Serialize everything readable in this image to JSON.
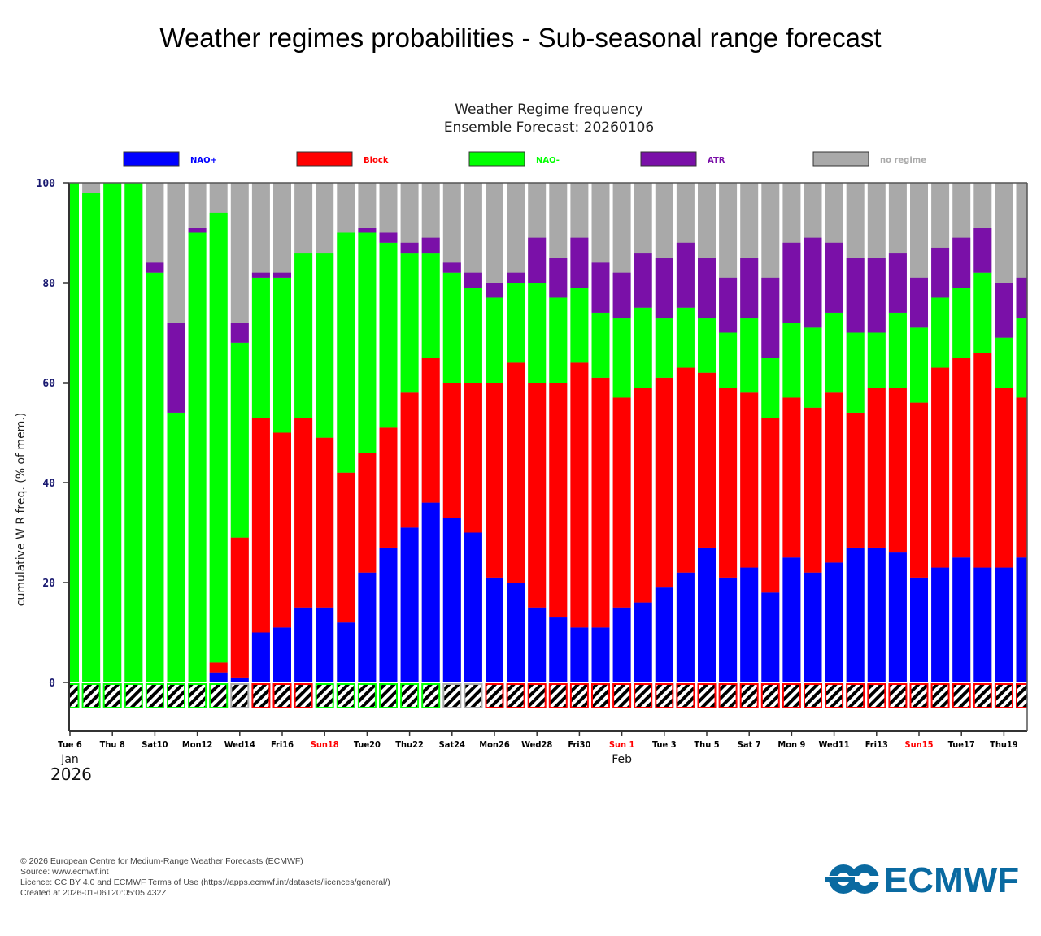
{
  "page": {
    "title": "Weather regimes probabilities - Sub-seasonal range forecast",
    "footer": [
      "© 2026 European Centre for Medium-Range Weather Forecasts (ECMWF)",
      "Source: www.ecmwf.int",
      "Licence: CC BY 4.0 and ECMWF Terms of Use (https://apps.ecmwf.int/datasets/licences/general/)",
      "Created at 2026-01-06T20:05:05.432Z"
    ],
    "logo_text": "ECMWF",
    "logo_color": "#0a6aa1"
  },
  "chart_data": {
    "type": "bar",
    "stacked": true,
    "title": "Weather Regime frequency",
    "subtitle": "Ensemble Forecast: 20260106",
    "xlabel": "",
    "ylabel": "cumulative W R freq. (% of mem.)",
    "ylim": [
      0,
      100
    ],
    "yticks": [
      0,
      20,
      40,
      60,
      80,
      100
    ],
    "legend_position": "top",
    "legend": [
      {
        "name": "NAO+",
        "color": "#0000ff"
      },
      {
        "name": "Block",
        "color": "#ff0000"
      },
      {
        "name": "NAO-",
        "color": "#00ff00"
      },
      {
        "name": "ATR",
        "color": "#7a10a8"
      },
      {
        "name": "no regime",
        "color": "#a9a9a9"
      }
    ],
    "categories": [
      "Jan 6",
      "Jan 7",
      "Jan 8",
      "Jan 9",
      "Jan 10",
      "Jan 11",
      "Jan 12",
      "Jan 13",
      "Jan 14",
      "Jan 15",
      "Jan 16",
      "Jan 17",
      "Jan 18",
      "Jan 19",
      "Jan 20",
      "Jan 21",
      "Jan 22",
      "Jan 23",
      "Jan 24",
      "Jan 25",
      "Jan 26",
      "Jan 27",
      "Jan 28",
      "Jan 29",
      "Jan 30",
      "Jan 31",
      "Feb 1",
      "Feb 2",
      "Feb 3",
      "Feb 4",
      "Feb 5",
      "Feb 6",
      "Feb 7",
      "Feb 8",
      "Feb 9",
      "Feb 10",
      "Feb 11",
      "Feb 12",
      "Feb 13",
      "Feb 14",
      "Feb 15",
      "Feb 16",
      "Feb 17",
      "Feb 18",
      "Feb 19",
      "Feb 20"
    ],
    "cumulative_tops": {
      "NAO+": [
        0,
        0,
        0,
        0,
        0,
        0,
        0,
        2,
        1,
        10,
        11,
        15,
        15,
        12,
        22,
        27,
        31,
        36,
        33,
        30,
        21,
        20,
        15,
        13,
        11,
        11,
        15,
        16,
        19,
        22,
        27,
        21,
        23,
        18,
        25,
        22,
        24,
        27,
        27,
        26,
        21,
        23,
        25,
        23,
        23,
        25
      ],
      "Block": [
        0,
        0,
        0,
        0,
        0,
        0,
        0,
        4,
        29,
        53,
        50,
        53,
        49,
        42,
        46,
        51,
        58,
        65,
        60,
        60,
        60,
        64,
        60,
        60,
        64,
        61,
        57,
        59,
        61,
        63,
        62,
        59,
        58,
        53,
        57,
        55,
        58,
        54,
        59,
        59,
        56,
        63,
        65,
        66,
        59,
        57
      ],
      "NAO-": [
        100,
        98,
        100,
        100,
        82,
        54,
        90,
        94,
        68,
        81,
        81,
        86,
        86,
        90,
        90,
        88,
        86,
        86,
        82,
        79,
        77,
        80,
        80,
        77,
        79,
        74,
        73,
        75,
        73,
        75,
        73,
        70,
        73,
        65,
        72,
        71,
        74,
        70,
        70,
        74,
        71,
        77,
        79,
        82,
        69,
        73
      ],
      "ATR": [
        100,
        98,
        100,
        100,
        84,
        72,
        91,
        94,
        72,
        82,
        82,
        86,
        86,
        90,
        91,
        90,
        88,
        89,
        84,
        82,
        80,
        82,
        89,
        85,
        89,
        84,
        82,
        86,
        85,
        88,
        85,
        81,
        85,
        81,
        88,
        89,
        88,
        85,
        85,
        86,
        81,
        87,
        89,
        91,
        80,
        81
      ]
    },
    "series": [
      {
        "name": "NAO+",
        "values": [
          0,
          0,
          0,
          0,
          0,
          0,
          0,
          2,
          1,
          10,
          11,
          15,
          15,
          12,
          22,
          27,
          31,
          36,
          33,
          30,
          21,
          20,
          15,
          13,
          11,
          11,
          15,
          16,
          19,
          22,
          27,
          21,
          23,
          18,
          25,
          22,
          24,
          27,
          27,
          26,
          21,
          23,
          25,
          23,
          23,
          25
        ]
      },
      {
        "name": "Block",
        "values": [
          0,
          0,
          0,
          0,
          0,
          0,
          0,
          2,
          28,
          43,
          39,
          38,
          34,
          30,
          24,
          24,
          27,
          29,
          27,
          30,
          39,
          44,
          45,
          47,
          53,
          50,
          42,
          43,
          42,
          41,
          35,
          38,
          35,
          35,
          32,
          33,
          34,
          27,
          32,
          33,
          35,
          40,
          40,
          43,
          36,
          32
        ]
      },
      {
        "name": "NAO-",
        "values": [
          100,
          98,
          100,
          100,
          82,
          54,
          90,
          90,
          39,
          28,
          31,
          33,
          37,
          48,
          44,
          37,
          28,
          21,
          22,
          19,
          17,
          16,
          20,
          17,
          15,
          13,
          16,
          16,
          12,
          12,
          11,
          11,
          15,
          12,
          15,
          16,
          16,
          16,
          11,
          15,
          15,
          14,
          14,
          16,
          10,
          16
        ]
      },
      {
        "name": "ATR",
        "values": [
          0,
          0,
          0,
          0,
          2,
          18,
          1,
          0,
          4,
          1,
          1,
          0,
          0,
          0,
          1,
          2,
          2,
          3,
          2,
          3,
          3,
          2,
          9,
          8,
          10,
          10,
          9,
          11,
          12,
          13,
          12,
          11,
          12,
          16,
          16,
          18,
          14,
          15,
          15,
          12,
          10,
          10,
          10,
          9,
          11,
          8
        ]
      },
      {
        "name": "no regime",
        "values": [
          0,
          2,
          0,
          0,
          16,
          28,
          9,
          6,
          28,
          18,
          18,
          14,
          14,
          10,
          9,
          10,
          12,
          11,
          16,
          18,
          20,
          18,
          11,
          15,
          11,
          16,
          18,
          14,
          15,
          12,
          15,
          19,
          15,
          19,
          12,
          11,
          12,
          15,
          15,
          14,
          19,
          13,
          11,
          9,
          20,
          19
        ]
      }
    ],
    "dominant_regime": [
      "NAO-",
      "NAO-",
      "NAO-",
      "NAO-",
      "NAO-",
      "NAO-",
      "NAO-",
      "NAO-",
      "no regime",
      "Block",
      "Block",
      "Block",
      "NAO-",
      "NAO-",
      "NAO-",
      "NAO-",
      "NAO-",
      "NAO-",
      "no regime",
      "no regime",
      "Block",
      "Block",
      "Block",
      "Block",
      "Block",
      "Block",
      "Block",
      "Block",
      "Block",
      "Block",
      "Block",
      "Block",
      "Block",
      "Block",
      "Block",
      "Block",
      "Block",
      "Block",
      "Block",
      "Block",
      "Block",
      "Block",
      "Block",
      "Block",
      "Block",
      "Block"
    ],
    "xticks": [
      {
        "label": "Tue 6",
        "index": 0,
        "color": "#000000"
      },
      {
        "label": "Thu 8",
        "index": 2,
        "color": "#000000"
      },
      {
        "label": "Sat10",
        "index": 4,
        "color": "#000000"
      },
      {
        "label": "Mon12",
        "index": 6,
        "color": "#000000"
      },
      {
        "label": "Wed14",
        "index": 8,
        "color": "#000000"
      },
      {
        "label": "Fri16",
        "index": 10,
        "color": "#000000"
      },
      {
        "label": "Sun18",
        "index": 12,
        "color": "#ff0000"
      },
      {
        "label": "Tue20",
        "index": 14,
        "color": "#000000"
      },
      {
        "label": "Thu22",
        "index": 16,
        "color": "#000000"
      },
      {
        "label": "Sat24",
        "index": 18,
        "color": "#000000"
      },
      {
        "label": "Mon26",
        "index": 20,
        "color": "#000000"
      },
      {
        "label": "Wed28",
        "index": 22,
        "color": "#000000"
      },
      {
        "label": "Fri30",
        "index": 24,
        "color": "#000000"
      },
      {
        "label": "Sun 1",
        "index": 26,
        "color": "#ff0000"
      },
      {
        "label": "Tue 3",
        "index": 28,
        "color": "#000000"
      },
      {
        "label": "Thu 5",
        "index": 30,
        "color": "#000000"
      },
      {
        "label": "Sat 7",
        "index": 32,
        "color": "#000000"
      },
      {
        "label": "Mon 9",
        "index": 34,
        "color": "#000000"
      },
      {
        "label": "Wed11",
        "index": 36,
        "color": "#000000"
      },
      {
        "label": "Fri13",
        "index": 38,
        "color": "#000000"
      },
      {
        "label": "Sun15",
        "index": 40,
        "color": "#ff0000"
      },
      {
        "label": "Tue17",
        "index": 42,
        "color": "#000000"
      },
      {
        "label": "Thu19",
        "index": 44,
        "color": "#000000"
      }
    ],
    "month_labels": [
      {
        "label": "Jan",
        "index": 0
      },
      {
        "label": "Feb",
        "index": 26
      }
    ],
    "year_label": "2026",
    "grid": false
  }
}
